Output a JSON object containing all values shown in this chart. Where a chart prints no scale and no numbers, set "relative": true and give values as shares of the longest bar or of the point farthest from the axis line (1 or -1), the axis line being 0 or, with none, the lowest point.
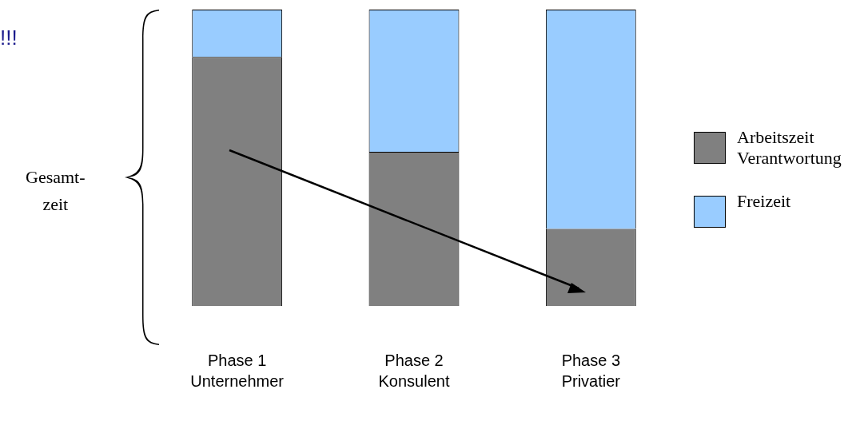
{
  "chart_data": {
    "type": "bar",
    "stacked": true,
    "relative": true,
    "legend": "right",
    "categories": [
      "Phase 1\nUnternehmer",
      "Phase 2\nKonsulent",
      "Phase 3\nPrivatier"
    ],
    "series": [
      {
        "name": "Arbeitszeit\nVerantwortung",
        "color": "#808080",
        "values": [
          0.84,
          0.52,
          0.26
        ]
      },
      {
        "name": "Freizeit",
        "color": "#99ccff",
        "values": [
          0.16,
          0.48,
          0.74
        ]
      }
    ],
    "annotations": [
      "!!!",
      "Gesamt-\nzeit"
    ]
  }
}
